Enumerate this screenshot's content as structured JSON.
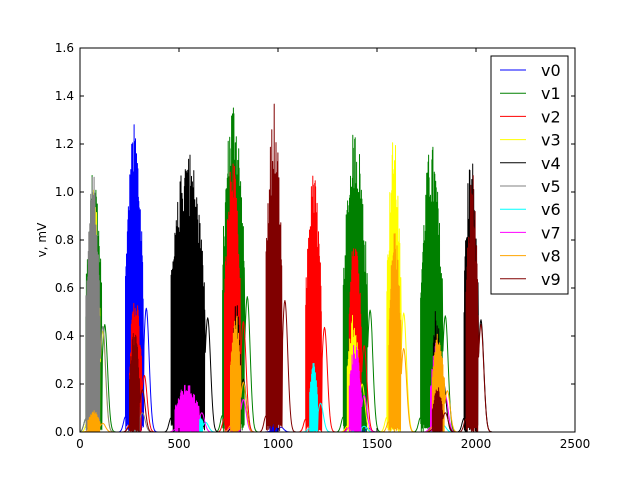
{
  "chart_data": {
    "type": "line",
    "xlabel": "",
    "ylabel": "v, mV",
    "xlim": [
      0,
      2500
    ],
    "ylim": [
      0,
      1.6
    ],
    "x_ticks": [
      0,
      500,
      1000,
      1500,
      2000,
      2500
    ],
    "y_ticks": [
      0.0,
      0.2,
      0.4,
      0.6,
      0.8,
      1.0,
      1.2,
      1.4,
      1.6
    ],
    "x_tick_labels": [
      "0",
      "500",
      "1000",
      "1500",
      "2000",
      "2500"
    ],
    "y_tick_labels": [
      "0.0",
      "0.2",
      "0.4",
      "0.6",
      "0.8",
      "1.0",
      "1.2",
      "1.4",
      "1.6"
    ],
    "legend_position": "top-right",
    "grid": false,
    "series": [
      {
        "name": "v0",
        "color": "#0000ff",
        "bursts": [
          [
            230,
            320,
            1.29
          ],
          [
            960,
            1000,
            0.05
          ],
          [
            1400,
            1440,
            0.04
          ]
        ]
      },
      {
        "name": "v1",
        "color": "#008000",
        "bursts": [
          [
            30,
            110,
            1.12
          ],
          [
            720,
            830,
            1.41
          ],
          [
            1330,
            1450,
            1.27
          ],
          [
            1720,
            1830,
            1.21
          ]
        ]
      },
      {
        "name": "v2",
        "color": "#ff0000",
        "bursts": [
          [
            250,
            310,
            0.59
          ],
          [
            730,
            810,
            1.15
          ],
          [
            1140,
            1220,
            1.09
          ],
          [
            1360,
            1420,
            0.9
          ]
        ]
      },
      {
        "name": "v3",
        "color": "#ffff00",
        "bursts": [
          [
            40,
            100,
            1.05
          ],
          [
            1550,
            1620,
            1.24
          ],
          [
            1350,
            1410,
            0.5
          ]
        ]
      },
      {
        "name": "v4",
        "color": "#000000",
        "bursts": [
          [
            460,
            630,
            1.19
          ],
          [
            1940,
            2010,
            1.17
          ],
          [
            770,
            810,
            0.55
          ],
          [
            1780,
            1820,
            0.53
          ]
        ]
      },
      {
        "name": "v5",
        "color": "#808080",
        "bursts": [
          [
            30,
            100,
            1.1
          ],
          [
            260,
            300,
            0.2
          ]
        ]
      },
      {
        "name": "v6",
        "color": "#00ffff",
        "bursts": [
          [
            500,
            620,
            0.1
          ],
          [
            1160,
            1200,
            0.3
          ],
          [
            1380,
            1420,
            0.06
          ],
          [
            1780,
            1820,
            0.07
          ]
        ]
      },
      {
        "name": "v7",
        "color": "#ff00ff",
        "bursts": [
          [
            480,
            600,
            0.2
          ],
          [
            760,
            810,
            0.34
          ],
          [
            1360,
            1420,
            0.38
          ],
          [
            1770,
            1830,
            0.38
          ]
        ]
      },
      {
        "name": "v8",
        "color": "#ffa500",
        "bursts": [
          [
            40,
            100,
            0.09
          ],
          [
            760,
            810,
            0.52
          ],
          [
            1560,
            1620,
            0.87
          ],
          [
            1780,
            1840,
            0.43
          ]
        ]
      },
      {
        "name": "v9",
        "color": "#800000",
        "bursts": [
          [
            940,
            1020,
            1.37
          ],
          [
            1950,
            2010,
            1.12
          ],
          [
            250,
            300,
            0.44
          ],
          [
            1780,
            1830,
            0.2
          ]
        ]
      }
    ]
  }
}
